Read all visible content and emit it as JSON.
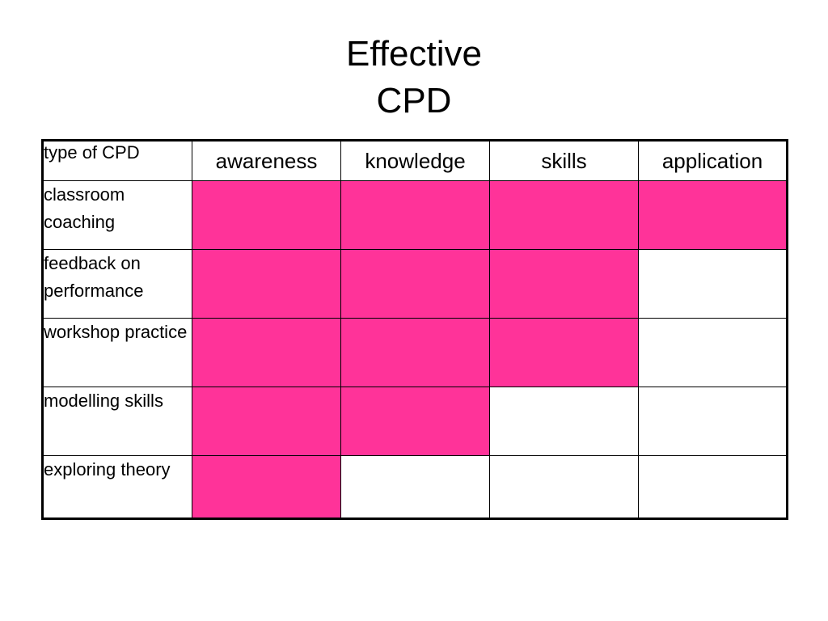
{
  "slide": {
    "title_line1": "Effective",
    "title_line2": "CPD"
  },
  "highlight_color": "#ff3399",
  "table": {
    "corner_label": "type of CPD",
    "columns": [
      "awareness",
      "knowledge",
      "skills",
      "application"
    ],
    "rows": [
      {
        "label": "classroom coaching",
        "cells": [
          true,
          true,
          true,
          true
        ]
      },
      {
        "label": "feedback on performance",
        "cells": [
          true,
          true,
          true,
          false
        ]
      },
      {
        "label": "workshop practice",
        "cells": [
          true,
          true,
          true,
          false
        ]
      },
      {
        "label": "modelling skills",
        "cells": [
          true,
          true,
          false,
          false
        ]
      },
      {
        "label": "exploring theory",
        "cells": [
          true,
          false,
          false,
          false
        ]
      }
    ]
  }
}
